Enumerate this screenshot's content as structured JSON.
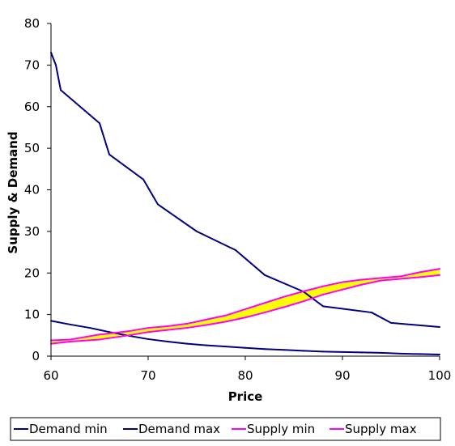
{
  "chart_data": {
    "type": "line",
    "xlabel": "Price",
    "ylabel": "Supply & Demand",
    "xlim": [
      60,
      100
    ],
    "ylim": [
      0,
      80
    ],
    "xticks": [
      "60",
      "70",
      "80",
      "90",
      "100"
    ],
    "yticks": [
      "0",
      "10",
      "20",
      "30",
      "40",
      "50",
      "60",
      "70",
      "80"
    ],
    "grid": false,
    "legend_position": "bottom",
    "fill_between": {
      "lower": "Supply min",
      "upper": "Supply max",
      "color": "#ffff00"
    },
    "series": [
      {
        "name": "Demand min",
        "color": "#000080",
        "x": [
          60,
          62,
          64,
          66,
          68,
          70,
          72,
          74,
          76,
          78,
          80,
          82,
          84,
          86,
          88,
          90,
          92,
          94,
          96,
          98,
          100
        ],
        "y": [
          8.5,
          7.6,
          6.8,
          5.8,
          4.9,
          4.1,
          3.5,
          3.0,
          2.6,
          2.3,
          2.0,
          1.7,
          1.5,
          1.3,
          1.1,
          1.0,
          0.9,
          0.8,
          0.6,
          0.5,
          0.4
        ]
      },
      {
        "name": "Demand max",
        "color": "#000080",
        "x": [
          60,
          60.5,
          61,
          65,
          66,
          69.5,
          71,
          75,
          79,
          82,
          86,
          88,
          93,
          95,
          100
        ],
        "y": [
          73,
          70,
          64,
          56,
          48.5,
          42.5,
          36.5,
          30,
          25.5,
          19.5,
          15.5,
          12,
          10.5,
          8,
          7
        ]
      },
      {
        "name": "Supply min",
        "color": "#ff00ff",
        "x": [
          60,
          62,
          65,
          68,
          70,
          72,
          74,
          76,
          78,
          80,
          82,
          84,
          86,
          88,
          90,
          92,
          94,
          96,
          98,
          100
        ],
        "y": [
          3.0,
          3.5,
          4.0,
          5.0,
          5.8,
          6.3,
          6.8,
          7.5,
          8.3,
          9.3,
          10.5,
          11.8,
          13.2,
          14.8,
          16.0,
          17.2,
          18.2,
          18.6,
          19.0,
          19.5
        ]
      },
      {
        "name": "Supply max",
        "color": "#ff00ff",
        "x": [
          60,
          62,
          65,
          68,
          70,
          72,
          74,
          76,
          78,
          80,
          82,
          84,
          86,
          88,
          90,
          92,
          94,
          96,
          98,
          100
        ],
        "y": [
          3.8,
          4.0,
          5.2,
          6.0,
          6.8,
          7.2,
          7.8,
          8.8,
          9.8,
          11.3,
          12.8,
          14.3,
          15.6,
          16.8,
          17.8,
          18.4,
          18.8,
          19.2,
          20.2,
          21.0
        ]
      }
    ]
  }
}
